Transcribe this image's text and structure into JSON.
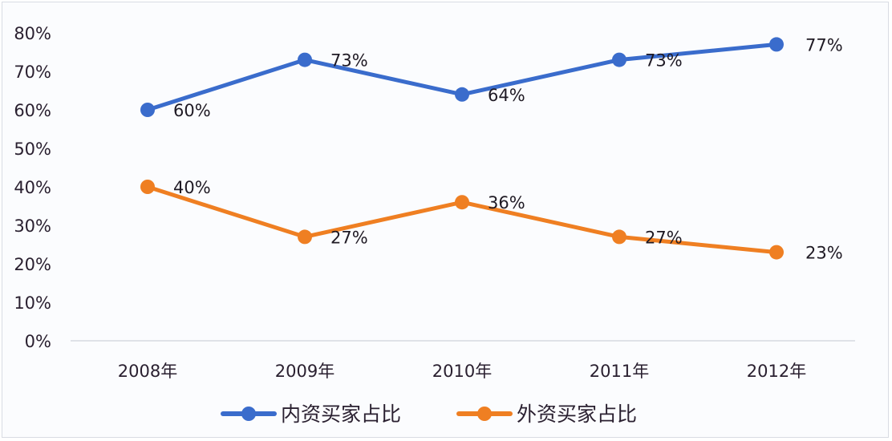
{
  "chart_data": {
    "type": "line",
    "title": "",
    "xlabel": "",
    "ylabel": "",
    "categories": [
      "2008年",
      "2009年",
      "2010年",
      "2011年",
      "2012年"
    ],
    "series": [
      {
        "name": "内资买家占比",
        "color": "#3a6ccc",
        "values": [
          60,
          73,
          64,
          73,
          77
        ],
        "labels": [
          "60%",
          "73%",
          "64%",
          "73%",
          "77%"
        ]
      },
      {
        "name": "外资买家占比",
        "color": "#ef7f22",
        "values": [
          40,
          27,
          36,
          27,
          23
        ],
        "labels": [
          "40%",
          "27%",
          "36%",
          "27%",
          "23%"
        ]
      }
    ],
    "ylim": [
      0,
      80
    ],
    "yticks": [
      "0%",
      "10%",
      "20%",
      "30%",
      "40%",
      "50%",
      "60%",
      "70%",
      "80%"
    ],
    "grid": false,
    "legend_position": "bottom"
  }
}
